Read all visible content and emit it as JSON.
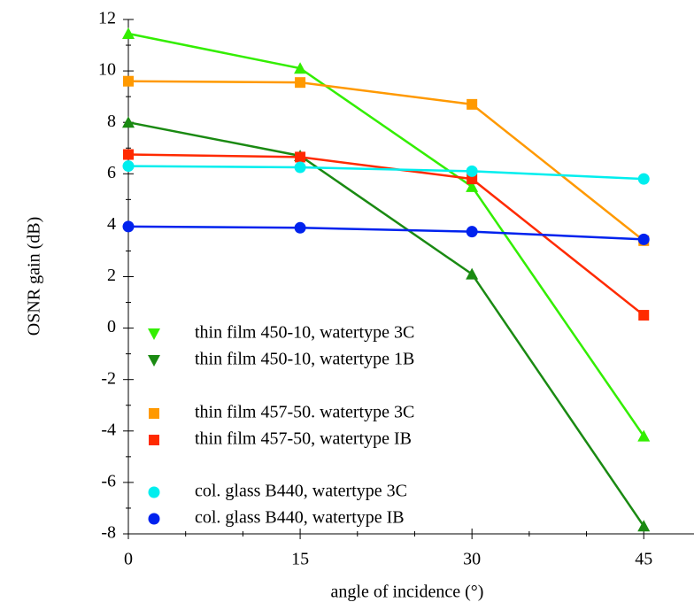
{
  "chart_data": {
    "type": "line",
    "x_label": "angle of incidence  (°)",
    "y_label": "OSNR gain (dB)",
    "x": [
      0,
      15,
      30,
      45
    ],
    "xlim": [
      0,
      49
    ],
    "xticks": [
      0,
      15,
      30,
      45
    ],
    "ylim": [
      -8,
      12
    ],
    "yticks": [
      -8,
      -6,
      -4,
      -2,
      0,
      2,
      4,
      6,
      8,
      10,
      12
    ],
    "series": [
      {
        "name": "thin film 450-10, watertype 3C",
        "color": "#33ee00",
        "marker": "triangle",
        "values": [
          11.45,
          10.1,
          5.5,
          -4.2
        ]
      },
      {
        "name": "thin film 450-10, watertype 1B",
        "color": "#1a8a12",
        "marker": "triangle",
        "values": [
          8.0,
          6.7,
          2.1,
          -7.7
        ]
      },
      {
        "name": "thin film 457-50. watertype 3C",
        "color": "#ff9900",
        "marker": "square",
        "values": [
          9.6,
          9.55,
          8.7,
          3.4
        ]
      },
      {
        "name": "thin film 457-50, watertype IB",
        "color": "#ff2a00",
        "marker": "square",
        "values": [
          6.75,
          6.65,
          5.8,
          0.5
        ]
      },
      {
        "name": "col. glass B440, watertype 3C",
        "color": "#00eeee",
        "marker": "circle",
        "values": [
          6.3,
          6.25,
          6.1,
          5.8
        ]
      },
      {
        "name": "col. glass B440, watertype IB",
        "color": "#0022ee",
        "marker": "circle",
        "values": [
          3.95,
          3.9,
          3.75,
          3.45
        ]
      }
    ]
  }
}
